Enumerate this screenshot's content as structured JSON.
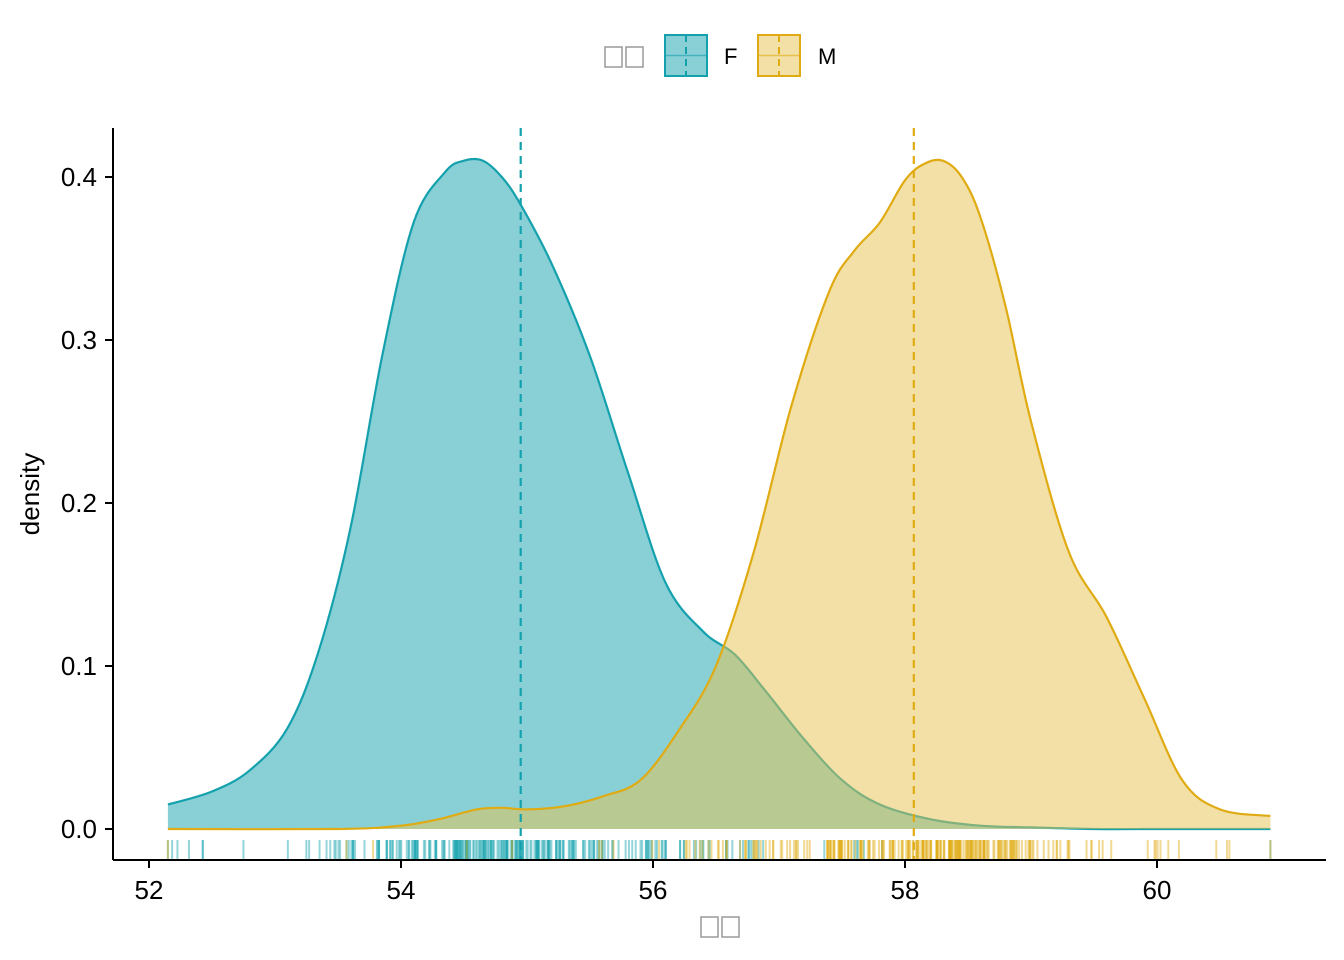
{
  "chart_data": {
    "type": "area",
    "title": "",
    "xlabel": "□□",
    "ylabel": "density",
    "xlim": [
      51.8,
      61.35
    ],
    "ylim": [
      -0.02,
      0.43
    ],
    "x_ticks": [
      "52",
      "54",
      "56",
      "58",
      "60"
    ],
    "y_ticks": [
      "0.0",
      "0.1",
      "0.2",
      "0.3",
      "0.4"
    ],
    "grid": false,
    "legend": {
      "position": "top",
      "title": "□□",
      "entries": [
        "F",
        "M"
      ]
    },
    "series": [
      {
        "name": "F",
        "color": "#14A1AD",
        "fill": "#14A1AD",
        "mean": 54.95,
        "x": [
          52.15,
          52.5,
          52.8,
          53.1,
          53.35,
          53.6,
          53.85,
          54.1,
          54.35,
          54.5,
          54.65,
          54.8,
          54.95,
          55.2,
          55.5,
          55.8,
          56.1,
          56.4,
          56.65,
          56.9,
          57.2,
          57.5,
          57.8,
          58.2,
          58.6,
          59.0,
          59.5,
          60.0,
          60.5,
          60.9
        ],
        "y": [
          0.015,
          0.023,
          0.036,
          0.062,
          0.11,
          0.185,
          0.29,
          0.372,
          0.403,
          0.41,
          0.41,
          0.4,
          0.383,
          0.346,
          0.29,
          0.219,
          0.151,
          0.121,
          0.107,
          0.084,
          0.055,
          0.03,
          0.015,
          0.006,
          0.002,
          0.001,
          0.0,
          0.0,
          0.0,
          0.0
        ]
      },
      {
        "name": "M",
        "color": "#E0AB12",
        "fill": "#E7C24D",
        "mean": 58.07,
        "x": [
          52.15,
          53.5,
          54.0,
          54.3,
          54.6,
          54.8,
          55.0,
          55.3,
          55.6,
          55.9,
          56.2,
          56.5,
          56.8,
          57.1,
          57.4,
          57.6,
          57.8,
          58.0,
          58.15,
          58.3,
          58.45,
          58.6,
          58.8,
          59.0,
          59.3,
          59.6,
          59.9,
          60.2,
          60.5,
          60.9
        ],
        "y": [
          0.0,
          0.0,
          0.002,
          0.006,
          0.012,
          0.013,
          0.012,
          0.014,
          0.02,
          0.03,
          0.06,
          0.1,
          0.17,
          0.26,
          0.33,
          0.355,
          0.372,
          0.398,
          0.408,
          0.41,
          0.4,
          0.375,
          0.32,
          0.25,
          0.17,
          0.13,
          0.08,
          0.03,
          0.012,
          0.008
        ]
      }
    ]
  }
}
